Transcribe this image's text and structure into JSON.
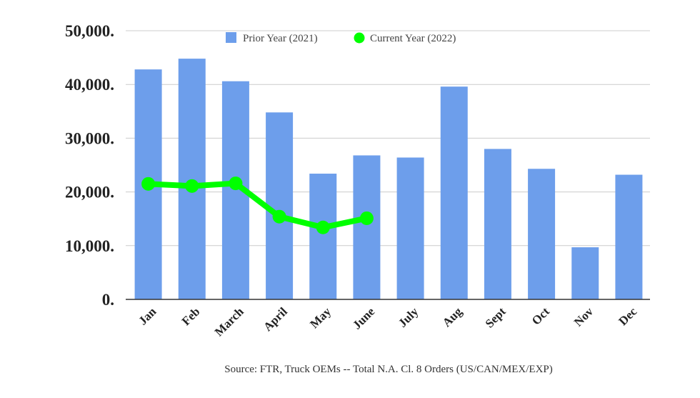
{
  "chart_data": {
    "type": "bar",
    "categories": [
      "Jan",
      "Feb",
      "March",
      "April",
      "May",
      "June",
      "July",
      "Aug",
      "Sept",
      "Oct",
      "Nov",
      "Dec"
    ],
    "series": [
      {
        "name": "Prior Year (2021)",
        "type": "bar",
        "color": "#6d9eeb",
        "values": [
          42800,
          44800,
          40600,
          34800,
          23400,
          26800,
          26400,
          39600,
          28000,
          24300,
          9700,
          23200
        ]
      },
      {
        "name": "Current Year (2022)",
        "type": "line",
        "color": "#00ff00",
        "values": [
          21500,
          21100,
          21600,
          15400,
          13400,
          15100,
          null,
          null,
          null,
          null,
          null,
          null
        ]
      }
    ],
    "ylim": [
      0,
      50000
    ],
    "yticks": [
      "0.",
      "10,000.",
      "20,000.",
      "30,000.",
      "40,000.",
      "50,000."
    ],
    "grid": true,
    "legend_position": "top",
    "source_note": "Source: FTR, Truck OEMs -- Total N.A. Cl. 8 Orders (US/CAN/MEX/EXP)"
  }
}
